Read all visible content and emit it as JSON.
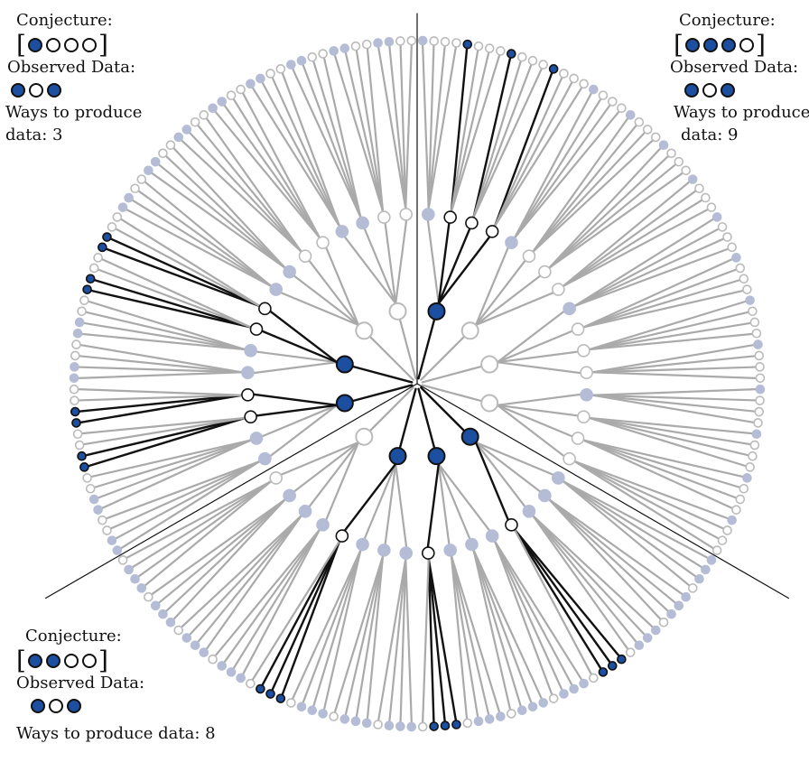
{
  "colors": {
    "blue": "#1d4fa0",
    "path_active": "#111111",
    "path_inactive": "#aaaaaa",
    "node_inactive_blue": "#b4bcd6",
    "node_inactive_white": "#bbbbbb"
  },
  "panels": [
    {
      "id": "top-left",
      "conjecture_label": "Conjecture:",
      "conjecture": [
        "blue",
        "white",
        "white",
        "white"
      ],
      "observed_label": "Observed Data:",
      "observed": [
        "blue",
        "white",
        "blue"
      ],
      "ways_label": "Ways to produce data: 3"
    },
    {
      "id": "top-right",
      "conjecture_label": "Conjecture:",
      "conjecture": [
        "blue",
        "blue",
        "blue",
        "white"
      ],
      "observed_label": "Observed Data:",
      "observed": [
        "blue",
        "white",
        "blue"
      ],
      "ways_label": "Ways to produce data: 9"
    },
    {
      "id": "bottom",
      "conjecture_label": "Conjecture:",
      "conjecture": [
        "blue",
        "blue",
        "white",
        "white"
      ],
      "observed_label": "Observed Data:",
      "observed": [
        "blue",
        "white",
        "blue"
      ],
      "ways_label": "Ways to produce data: 8"
    }
  ],
  "labels": {
    "tl": {
      "conjecture": "Conjecture:",
      "observed": "Observed Data:",
      "ways_line1": "Ways to produce",
      "ways_line2": "data: 3"
    },
    "tr": {
      "conjecture": "Conjecture:",
      "observed": "Observed Data:",
      "ways_line1": "Ways to produce",
      "ways_line2": "data: 9"
    },
    "b": {
      "conjecture": "Conjecture:",
      "observed": "Observed Data:",
      "ways_line1": "Ways to produce data: 8"
    }
  }
}
